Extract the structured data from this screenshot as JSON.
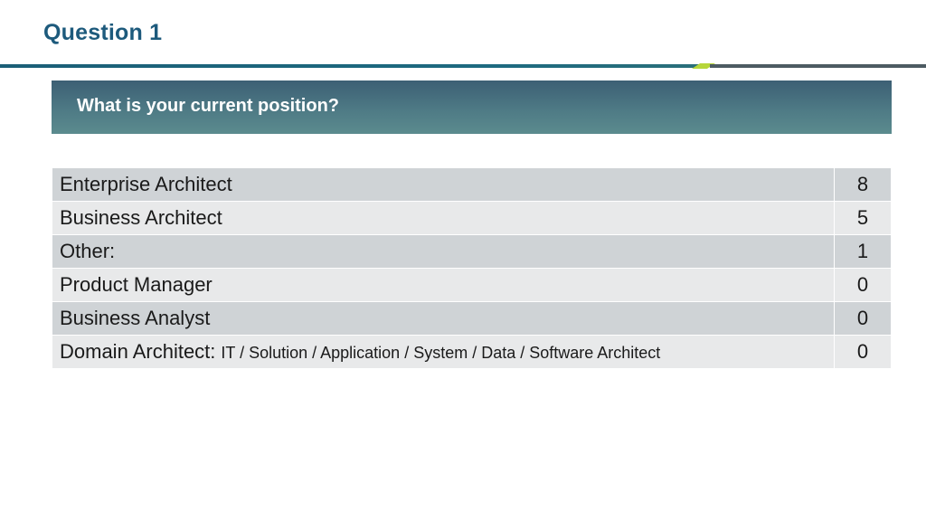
{
  "slide": {
    "title": "Question 1"
  },
  "question": {
    "text": "What is your current position?"
  },
  "results": [
    {
      "label": "Enterprise Architect",
      "detail": "",
      "count": "8"
    },
    {
      "label": "Business Architect",
      "detail": "",
      "count": "5"
    },
    {
      "label": "Other:",
      "detail": "",
      "count": "1"
    },
    {
      "label": "Product Manager",
      "detail": "",
      "count": "0"
    },
    {
      "label": "Business Analyst",
      "detail": "",
      "count": "0"
    },
    {
      "label": "Domain Architect:",
      "detail": "IT / Solution / Application / System / Data / Software Architect",
      "count": "0"
    }
  ],
  "colors": {
    "title": "#1d5a7c",
    "rule_main": "#1b5f77",
    "rule_accent": "#b7d63a",
    "rule_right": "#4d5b62",
    "row_shade": "#cfd3d6",
    "row_light": "#e8e9ea"
  }
}
